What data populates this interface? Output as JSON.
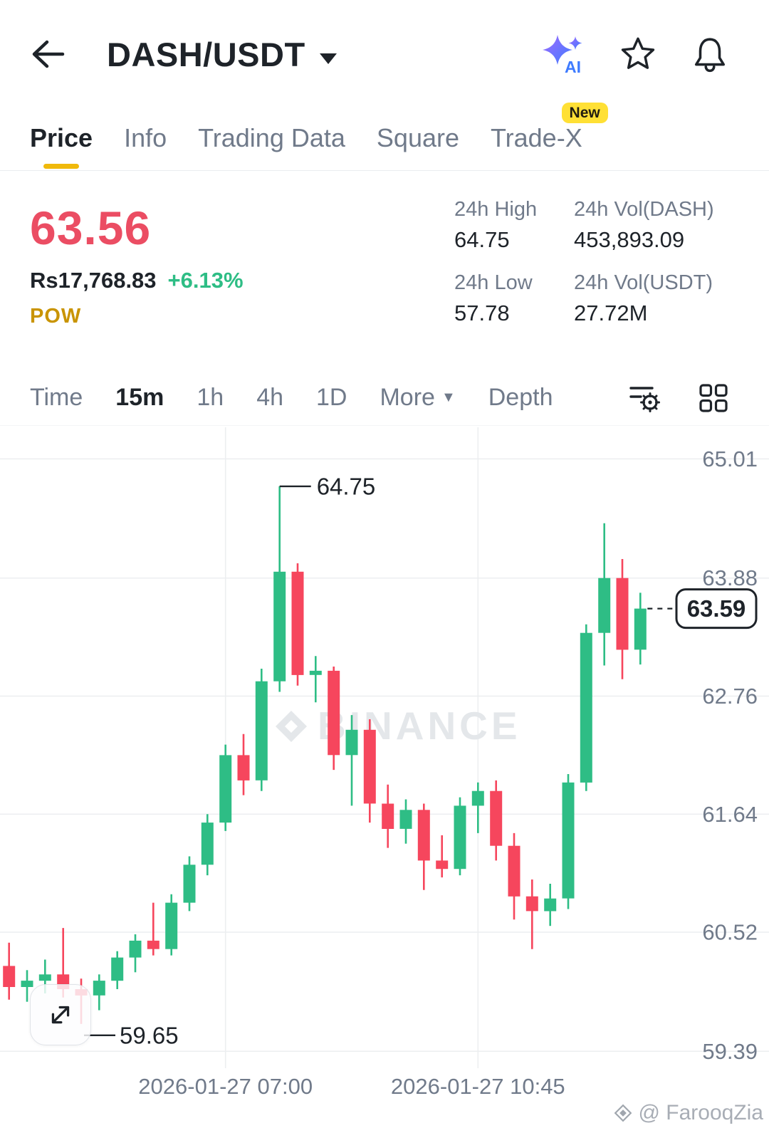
{
  "header": {
    "title": "DASH/USDT"
  },
  "tabs": [
    {
      "label": "Price",
      "active": true
    },
    {
      "label": "Info"
    },
    {
      "label": "Trading Data"
    },
    {
      "label": "Square"
    },
    {
      "label": "Trade-X",
      "badge": "New"
    }
  ],
  "price_panel": {
    "last_price": "63.56",
    "fiat_price": "Rs17,768.83",
    "change_pct": "+6.13%",
    "tag": "POW",
    "stats": [
      {
        "label": "24h High",
        "value": "64.75"
      },
      {
        "label": "24h Vol(DASH)",
        "value": "453,893.09"
      },
      {
        "label": "24h Low",
        "value": "57.78"
      },
      {
        "label": "24h Vol(USDT)",
        "value": "27.72M"
      }
    ]
  },
  "toolbar": {
    "items": [
      {
        "label": "Time"
      },
      {
        "label": "15m",
        "active": true
      },
      {
        "label": "1h"
      },
      {
        "label": "4h"
      },
      {
        "label": "1D"
      },
      {
        "label": "More",
        "caret": "▼"
      },
      {
        "label": "Depth"
      }
    ]
  },
  "chart_data": {
    "type": "candlestick",
    "interval": "15m",
    "y_ticks": [
      65.01,
      63.88,
      62.76,
      61.64,
      60.52,
      59.39
    ],
    "y_range": [
      59.23,
      65.31
    ],
    "x_labels": [
      {
        "text": "2026-01-27 07:00",
        "candle_index": 12
      },
      {
        "text": "2026-01-27 10:45",
        "candle_index": 26
      }
    ],
    "high_annotation": {
      "text": "64.75",
      "candle_index": 15
    },
    "low_annotation": {
      "text": "59.65",
      "candle_index": 4
    },
    "current_price": {
      "text": "63.59",
      "value": 63.59
    },
    "watermark": "BINANCE",
    "colors": {
      "up": "#2EBD85",
      "down": "#F6465D",
      "grid": "#ECEEF0",
      "axis_text": "#707A8A",
      "annotation": "#1E2329",
      "watermark": "#E4E7EA"
    },
    "candles": [
      [
        60.2,
        60.42,
        59.88,
        60.0
      ],
      [
        60.0,
        60.16,
        59.86,
        60.06
      ],
      [
        60.06,
        60.26,
        59.94,
        60.12
      ],
      [
        60.12,
        60.56,
        59.9,
        59.98
      ],
      [
        59.98,
        60.08,
        59.65,
        59.92
      ],
      [
        59.92,
        60.12,
        59.78,
        60.06
      ],
      [
        60.06,
        60.34,
        59.98,
        60.28
      ],
      [
        60.28,
        60.5,
        60.14,
        60.44
      ],
      [
        60.44,
        60.8,
        60.3,
        60.36
      ],
      [
        60.36,
        60.88,
        60.3,
        60.8
      ],
      [
        60.8,
        61.24,
        60.72,
        61.16
      ],
      [
        61.16,
        61.64,
        61.06,
        61.56
      ],
      [
        61.56,
        62.3,
        61.48,
        62.2
      ],
      [
        62.2,
        62.4,
        61.82,
        61.96
      ],
      [
        61.96,
        63.02,
        61.86,
        62.9
      ],
      [
        62.9,
        64.75,
        62.8,
        63.94
      ],
      [
        63.94,
        64.02,
        62.86,
        62.96
      ],
      [
        62.96,
        63.14,
        62.7,
        63.0
      ],
      [
        63.0,
        63.04,
        62.06,
        62.2
      ],
      [
        62.2,
        62.58,
        61.72,
        62.44
      ],
      [
        62.44,
        62.54,
        61.56,
        61.74
      ],
      [
        61.74,
        61.92,
        61.32,
        61.5
      ],
      [
        61.5,
        61.78,
        61.36,
        61.68
      ],
      [
        61.68,
        61.74,
        60.92,
        61.2
      ],
      [
        61.2,
        61.44,
        61.04,
        61.12
      ],
      [
        61.12,
        61.8,
        61.06,
        61.72
      ],
      [
        61.72,
        61.94,
        61.46,
        61.86
      ],
      [
        61.86,
        61.96,
        61.2,
        61.34
      ],
      [
        61.34,
        61.46,
        60.64,
        60.86
      ],
      [
        60.86,
        61.02,
        60.36,
        60.72
      ],
      [
        60.72,
        60.98,
        60.58,
        60.84
      ],
      [
        60.84,
        62.02,
        60.74,
        61.94
      ],
      [
        61.94,
        63.44,
        61.86,
        63.36
      ],
      [
        63.36,
        64.4,
        63.05,
        63.88
      ],
      [
        63.88,
        64.06,
        62.92,
        63.2
      ],
      [
        63.2,
        63.74,
        63.06,
        63.59
      ]
    ]
  },
  "signature": "@ FarooqZia"
}
